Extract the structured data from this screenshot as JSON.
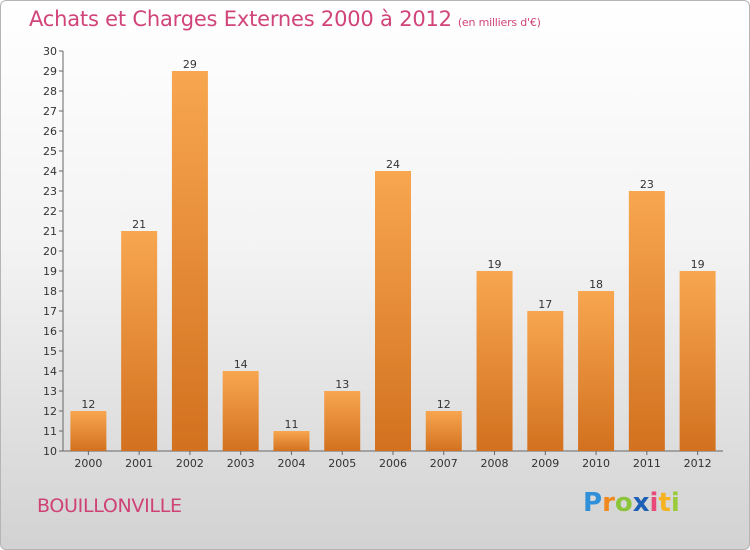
{
  "chart_data": {
    "type": "bar",
    "title": "Achats et Charges Externes 2000 à 2012",
    "subtitle": "(en milliers d'€)",
    "categories": [
      "2000",
      "2001",
      "2002",
      "2003",
      "2004",
      "2005",
      "2006",
      "2007",
      "2008",
      "2009",
      "2010",
      "2011",
      "2012"
    ],
    "values": [
      12,
      21,
      29,
      14,
      11,
      13,
      24,
      12,
      19,
      17,
      18,
      23,
      19
    ],
    "ylim": [
      10,
      30
    ],
    "yticks": [
      10,
      11,
      12,
      13,
      14,
      15,
      16,
      17,
      18,
      19,
      20,
      21,
      22,
      23,
      24,
      25,
      26,
      27,
      28,
      29,
      30
    ],
    "grid": false,
    "bar_color_top": "#f8a650",
    "bar_color_bottom": "#d2711f"
  },
  "footer": {
    "commune": "BOUILLONVILLE",
    "logo": [
      "P",
      "r",
      "o",
      "x",
      "i",
      "t",
      "i"
    ]
  }
}
